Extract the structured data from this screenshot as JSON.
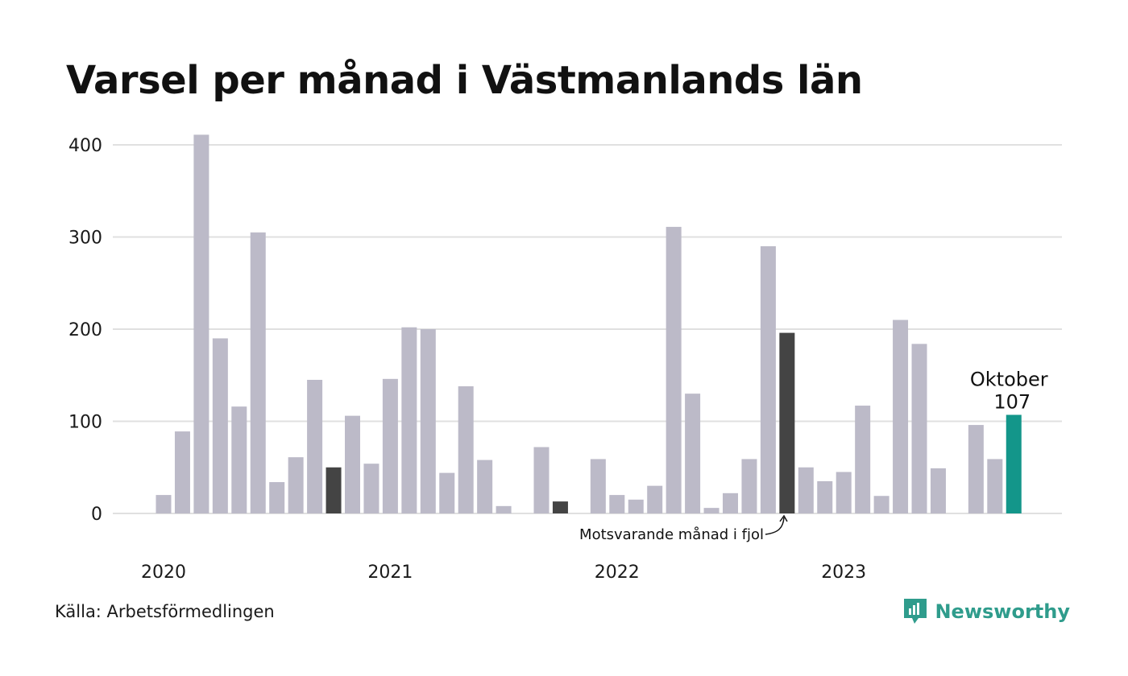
{
  "title": "Varsel per månad i Västmanlands län",
  "source": "Källa: Arbetsförmedlingen",
  "brand": {
    "name": "Newsworthy",
    "icon": "newsworthy-logo-icon",
    "color": "#2f9c8c"
  },
  "colors": {
    "bar": "#bcbac8",
    "compare": "#444444",
    "current": "#13968a",
    "grid": "#e0e0e0"
  },
  "annotation": {
    "text": "Motsvarande månad i fjol"
  },
  "highlight": {
    "label": "Oktober",
    "value_label": "107"
  },
  "chart_data": {
    "type": "bar",
    "title": "Varsel per månad i Västmanlands län",
    "xlabel": "",
    "ylabel": "",
    "ylim": [
      0,
      420
    ],
    "yticks": [
      0,
      100,
      200,
      300,
      400
    ],
    "grid": true,
    "x_year_labels": [
      "2020",
      "2021",
      "2022",
      "2023"
    ],
    "categories": [
      "2020-01",
      "2020-02",
      "2020-03",
      "2020-04",
      "2020-05",
      "2020-06",
      "2020-07",
      "2020-08",
      "2020-09",
      "2020-10",
      "2020-11",
      "2020-12",
      "2021-01",
      "2021-02",
      "2021-03",
      "2021-04",
      "2021-05",
      "2021-06",
      "2021-07",
      "2021-08",
      "2021-09",
      "2021-10",
      "2021-11",
      "2021-12",
      "2022-01",
      "2022-02",
      "2022-03",
      "2022-04",
      "2022-05",
      "2022-06",
      "2022-07",
      "2022-08",
      "2022-09",
      "2022-10",
      "2022-11",
      "2022-12",
      "2023-01",
      "2023-02",
      "2023-03",
      "2023-04",
      "2023-05",
      "2023-06",
      "2023-07",
      "2023-08",
      "2023-09",
      "2023-10"
    ],
    "values": [
      20,
      89,
      411,
      190,
      116,
      305,
      34,
      61,
      145,
      50,
      106,
      54,
      146,
      202,
      200,
      44,
      138,
      58,
      8,
      0,
      72,
      13,
      0,
      59,
      20,
      15,
      30,
      311,
      130,
      6,
      22,
      59,
      290,
      196,
      50,
      35,
      45,
      117,
      19,
      210,
      184,
      49,
      0,
      96,
      59,
      107
    ],
    "compare_indices": [
      9,
      21,
      33
    ],
    "current_index": 45
  }
}
